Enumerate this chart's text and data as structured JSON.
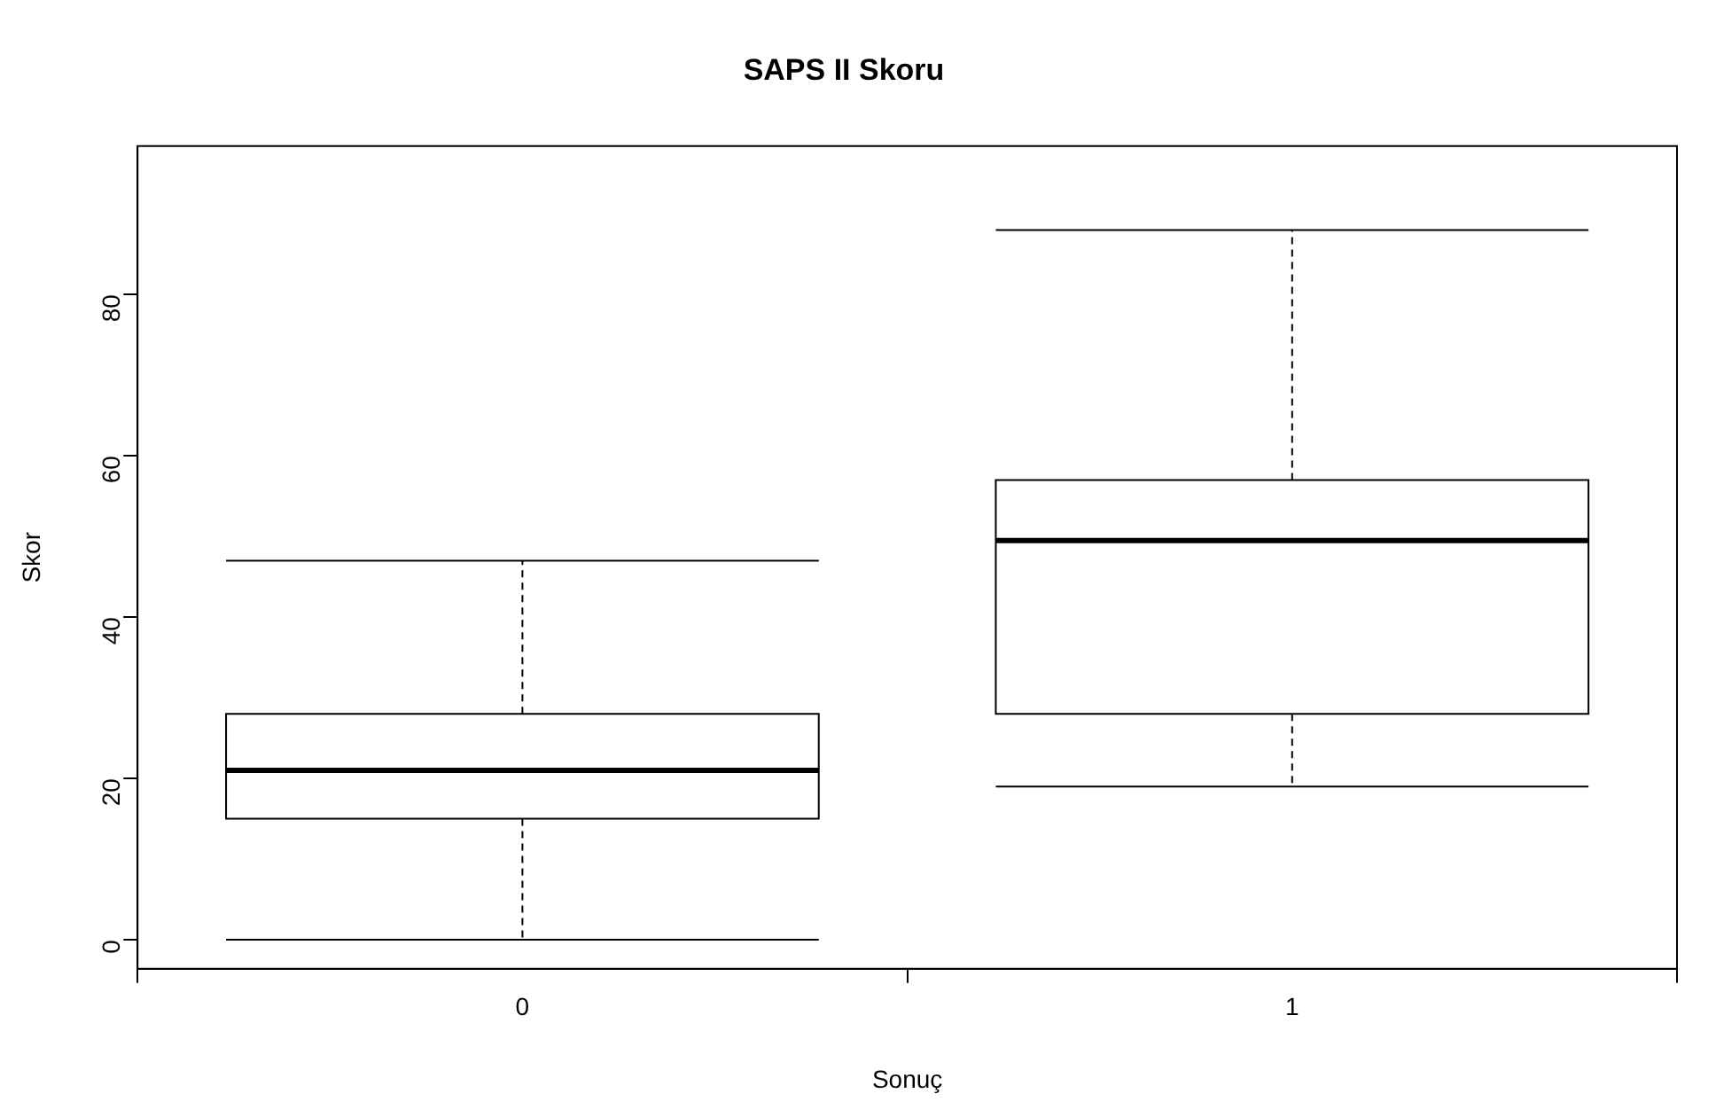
{
  "chart_data": {
    "type": "box",
    "title": "SAPS II Skoru",
    "xlabel": "Sonuç",
    "ylabel": "Skor",
    "categories": [
      "0",
      "1"
    ],
    "boxes": [
      {
        "low": 0,
        "q1": 15,
        "median": 21,
        "q3": 28,
        "high": 47
      },
      {
        "low": 19,
        "q1": 28,
        "median": 49.5,
        "q3": 57,
        "high": 88
      }
    ],
    "color": "#000000",
    "ylim": [
      -3.6,
      98.4
    ],
    "yticks": [
      0,
      20,
      40,
      60,
      80
    ],
    "grid": false,
    "legend": false
  }
}
